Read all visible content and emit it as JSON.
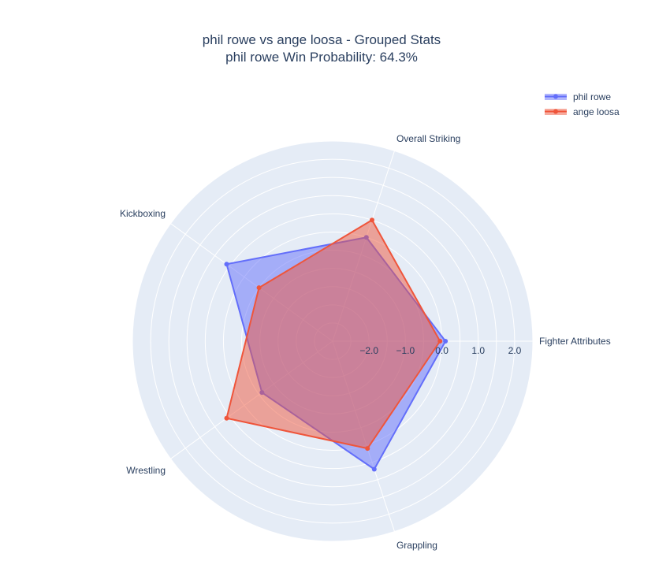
{
  "title": {
    "line1": "phil rowe vs ange loosa - Grouped Stats",
    "line2": "phil rowe Win Probability: 64.3%"
  },
  "colors": {
    "background": "#ffffff",
    "polar_bg": "#E5ECF6",
    "grid": "#ffffff",
    "text": "#2a3f5f",
    "phil_rowe": "#636EFA",
    "ange_loosa": "#EF553B"
  },
  "chart_data": {
    "type": "radar",
    "categories": [
      "Fighter Attributes",
      "Overall Striking",
      "Kickboxing",
      "Wrestling",
      "Grappling"
    ],
    "radial_axis": {
      "range": [
        -3.0,
        2.5
      ],
      "tickvals": [
        -2.0,
        -1.0,
        0.0,
        1.0,
        2.0
      ],
      "ticktext": [
        "−2.0",
        "−1.0",
        "0.0",
        "1.0",
        "2.0"
      ]
    },
    "grid": true,
    "legend_position": "top-right",
    "series": [
      {
        "name": "phil rowe",
        "values": [
          0.1,
          0.0,
          0.6,
          -0.6,
          0.7
        ]
      },
      {
        "name": "ange loosa",
        "values": [
          -0.05,
          0.5,
          -0.5,
          0.6,
          0.1
        ]
      }
    ]
  },
  "legend": [
    {
      "label": "phil rowe"
    },
    {
      "label": "ange loosa"
    }
  ]
}
